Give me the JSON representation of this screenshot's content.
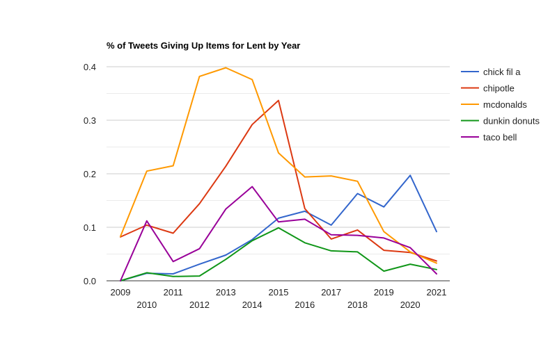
{
  "chart_data": {
    "type": "line",
    "title": "% of Tweets Giving Up Items for Lent by Year",
    "xlabel": "",
    "ylabel": "",
    "x": [
      "2009",
      "2010",
      "2011",
      "2012",
      "2013",
      "2014",
      "2015",
      "2016",
      "2017",
      "2018",
      "2019",
      "2020",
      "2021"
    ],
    "ylim": [
      0,
      0.4
    ],
    "yticks": [
      "0.0",
      "0.1",
      "0.2",
      "0.3",
      "0.4"
    ],
    "grid": true,
    "legend_position": "right",
    "series": [
      {
        "name": "chick fil a",
        "color": "#3366cc",
        "values": [
          0.0,
          0.014,
          0.013,
          0.031,
          0.048,
          0.077,
          0.117,
          0.13,
          0.104,
          0.163,
          0.138,
          0.197,
          0.092
        ]
      },
      {
        "name": "chipotle",
        "color": "#dc3912",
        "values": [
          0.082,
          0.104,
          0.089,
          0.144,
          0.214,
          0.292,
          0.337,
          0.135,
          0.078,
          0.095,
          0.057,
          0.053,
          0.037
        ]
      },
      {
        "name": "mcdonalds",
        "color": "#ff9900",
        "values": [
          0.083,
          0.205,
          0.215,
          0.382,
          0.398,
          0.376,
          0.239,
          0.194,
          0.196,
          0.186,
          0.092,
          0.054,
          0.033
        ]
      },
      {
        "name": "dunkin donuts",
        "color": "#109618",
        "values": [
          0.0,
          0.015,
          0.008,
          0.009,
          0.04,
          0.075,
          0.099,
          0.071,
          0.056,
          0.054,
          0.018,
          0.031,
          0.021
        ]
      },
      {
        "name": "taco bell",
        "color": "#990099",
        "values": [
          0.0,
          0.112,
          0.036,
          0.06,
          0.134,
          0.176,
          0.11,
          0.115,
          0.086,
          0.085,
          0.08,
          0.062,
          0.013
        ]
      }
    ]
  }
}
